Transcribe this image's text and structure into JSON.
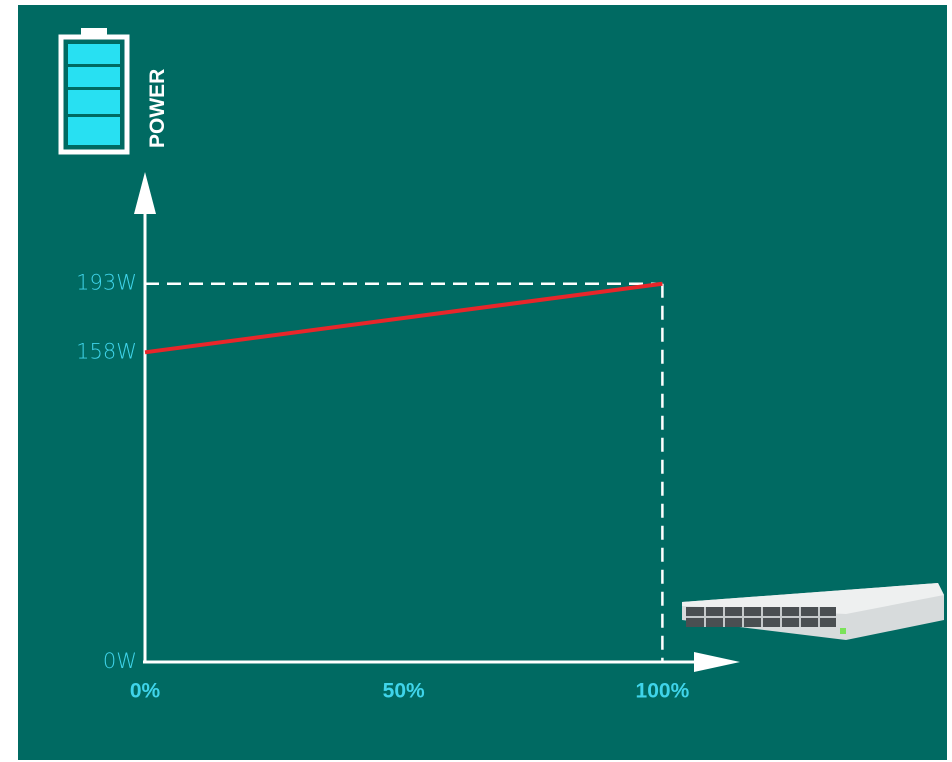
{
  "chart_data": {
    "type": "line",
    "y_label": "POWER",
    "series": [
      {
        "x": [
          0,
          100
        ],
        "values": [
          158,
          193
        ],
        "color": "#e8262a"
      }
    ],
    "xlim": [
      0,
      115
    ],
    "ylim": [
      0,
      250
    ],
    "xticks": [
      {
        "value": 0,
        "label": "0%"
      },
      {
        "value": 50,
        "label": "50%"
      },
      {
        "value": 100,
        "label": "100%"
      }
    ],
    "yticks": [
      {
        "value": 0,
        "label": "0W"
      },
      {
        "value": 158,
        "label": "158W"
      },
      {
        "value": 193,
        "label": "193W"
      }
    ]
  }
}
